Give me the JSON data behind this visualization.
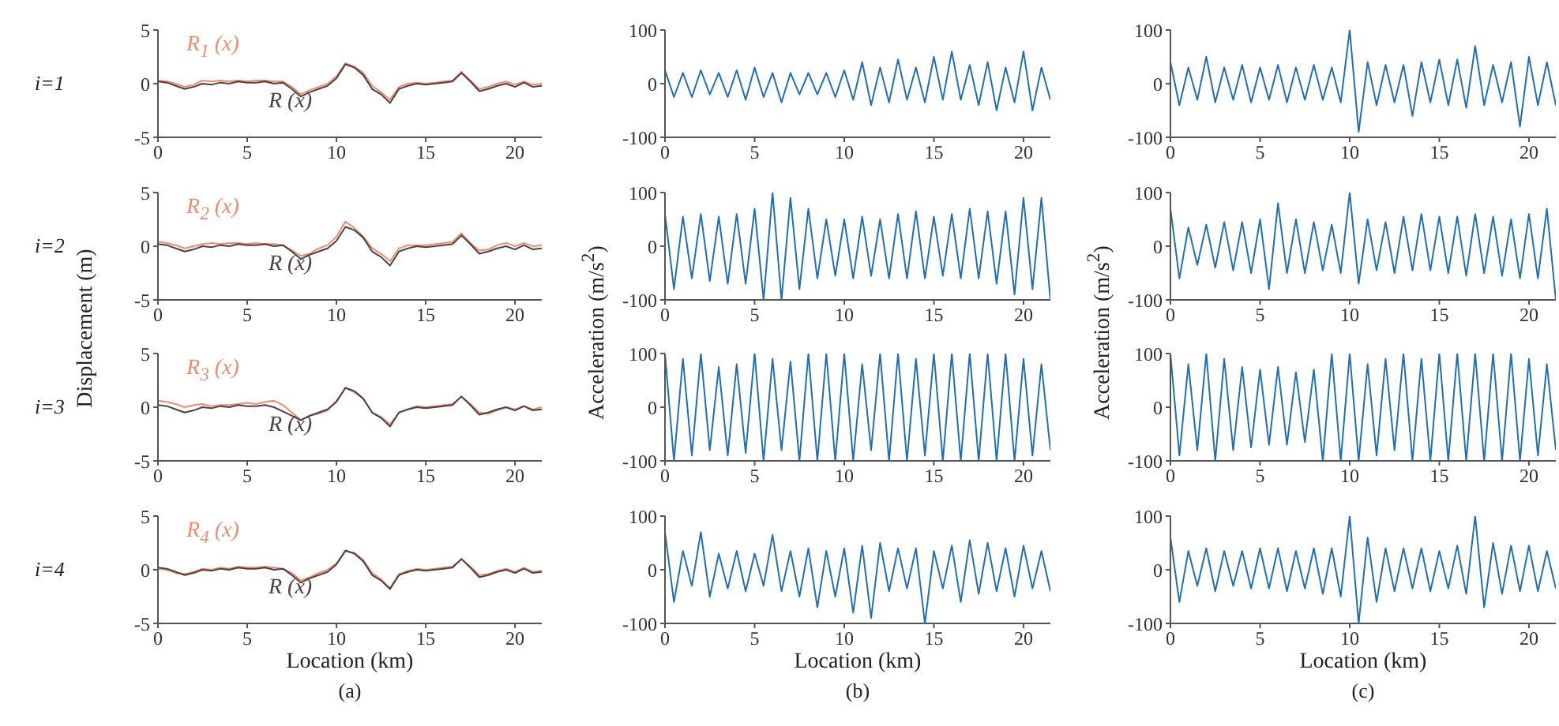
{
  "chart_data": [
    {
      "type": "line",
      "annotations": [
        "i=1"
      ],
      "xlim": [
        0,
        21.5
      ],
      "xticks": [
        0,
        5,
        10,
        15,
        20
      ],
      "ylim": [
        -5,
        5
      ],
      "yticks": [
        -5,
        0,
        5
      ],
      "x": [
        0,
        0.5,
        1,
        1.5,
        2,
        2.5,
        3,
        3.5,
        4,
        4.5,
        5,
        5.5,
        6,
        6.5,
        7,
        7.5,
        8,
        8.5,
        9,
        9.5,
        10,
        10.5,
        11,
        11.5,
        12,
        12.5,
        13,
        13.5,
        14,
        14.5,
        15,
        15.5,
        16,
        16.5,
        17,
        17.5,
        18,
        18.5,
        19,
        19.5,
        20,
        20.5,
        21,
        21.5
      ],
      "series": [
        {
          "name": "R$_{1}$ (x)",
          "color": "#ef8c6c",
          "values": [
            0.3,
            0.2,
            0,
            -0.3,
            -0.1,
            0.3,
            0.2,
            0.3,
            0.2,
            0.3,
            0.2,
            0.3,
            0.3,
            0.2,
            0.2,
            -0.3,
            -1.0,
            -0.6,
            -0.3,
            0,
            0.7,
            1.9,
            1.6,
            1.0,
            -0.2,
            -0.8,
            -1.5,
            -0.3,
            0,
            0.1,
            0,
            0.1,
            0.2,
            0.3,
            1.1,
            0.3,
            -0.5,
            -0.3,
            0,
            0.2,
            -0.1,
            0.2,
            -0.1,
            0
          ]
        },
        {
          "name": "R (x)",
          "color": "#4b4046",
          "values": [
            0.2,
            0.1,
            -0.2,
            -0.5,
            -0.3,
            0,
            -0.1,
            0.1,
            0,
            0.2,
            0.1,
            0.1,
            0.2,
            0,
            0.1,
            -0.5,
            -1.2,
            -0.8,
            -0.5,
            -0.2,
            0.5,
            1.8,
            1.5,
            0.8,
            -0.5,
            -1,
            -1.8,
            -0.5,
            -0.2,
            0,
            -0.1,
            0,
            0.1,
            0.2,
            1.0,
            0.2,
            -0.7,
            -0.5,
            -0.2,
            0,
            -0.3,
            0.1,
            -0.3,
            -0.2
          ]
        }
      ]
    },
    {
      "type": "line",
      "xlim": [
        0,
        21.5
      ],
      "xticks": [
        0,
        5,
        10,
        15,
        20
      ],
      "ylim": [
        -100,
        100
      ],
      "yticks": [
        -100,
        0,
        100
      ],
      "x": [
        0,
        0.5,
        1,
        1.5,
        2,
        2.5,
        3,
        3.5,
        4,
        4.5,
        5,
        5.5,
        6,
        6.5,
        7,
        7.5,
        8,
        8.5,
        9,
        9.5,
        10,
        10.5,
        11,
        11.5,
        12,
        12.5,
        13,
        13.5,
        14,
        14.5,
        15,
        15.5,
        16,
        16.5,
        17,
        17.5,
        18,
        18.5,
        19,
        19.5,
        20,
        20.5,
        21,
        21.5
      ],
      "series": [
        {
          "color": "#1f6fb4",
          "values": [
            25,
            -25,
            20,
            -25,
            25,
            -20,
            20,
            -25,
            25,
            -30,
            30,
            -25,
            20,
            -35,
            20,
            -20,
            20,
            -20,
            20,
            -25,
            25,
            -30,
            40,
            -40,
            30,
            -35,
            45,
            -30,
            30,
            -35,
            50,
            -30,
            60,
            -30,
            35,
            -40,
            40,
            -50,
            30,
            -35,
            60,
            -50,
            30,
            -30
          ]
        }
      ]
    },
    {
      "type": "line",
      "xlim": [
        0,
        21.5
      ],
      "xticks": [
        0,
        5,
        10,
        15,
        20
      ],
      "ylim": [
        -100,
        100
      ],
      "yticks": [
        -100,
        0,
        100
      ],
      "x": [
        0,
        0.5,
        1,
        1.5,
        2,
        2.5,
        3,
        3.5,
        4,
        4.5,
        5,
        5.5,
        6,
        6.5,
        7,
        7.5,
        8,
        8.5,
        9,
        9.5,
        10,
        10.5,
        11,
        11.5,
        12,
        12.5,
        13,
        13.5,
        14,
        14.5,
        15,
        15.5,
        16,
        16.5,
        17,
        17.5,
        18,
        18.5,
        19,
        19.5,
        20,
        20.5,
        21,
        21.5
      ],
      "series": [
        {
          "color": "#1f6fb4",
          "values": [
            40,
            -40,
            30,
            -30,
            50,
            -35,
            30,
            -30,
            35,
            -35,
            30,
            -30,
            35,
            -35,
            30,
            -30,
            35,
            -30,
            30,
            -35,
            100,
            -90,
            40,
            -40,
            35,
            -35,
            35,
            -60,
            40,
            -35,
            45,
            -40,
            45,
            -45,
            70,
            -40,
            35,
            -35,
            40,
            -80,
            50,
            -40,
            40,
            -40
          ]
        }
      ]
    },
    {
      "type": "line",
      "annotations": [
        "i=2"
      ],
      "ylabel": "Displacement (m)",
      "xlim": [
        0,
        21.5
      ],
      "xticks": [
        0,
        5,
        10,
        15,
        20
      ],
      "ylim": [
        -5,
        5
      ],
      "yticks": [
        -5,
        0,
        5
      ],
      "x": [
        0,
        0.5,
        1,
        1.5,
        2,
        2.5,
        3,
        3.5,
        4,
        4.5,
        5,
        5.5,
        6,
        6.5,
        7,
        7.5,
        8,
        8.5,
        9,
        9.5,
        10,
        10.5,
        11,
        11.5,
        12,
        12.5,
        13,
        13.5,
        14,
        14.5,
        15,
        15.5,
        16,
        16.5,
        17,
        17.5,
        18,
        18.5,
        19,
        19.5,
        20,
        20.5,
        21,
        21.5
      ],
      "series": [
        {
          "name": "R$_{2}$ (x)",
          "color": "#ef8c6c",
          "values": [
            0.4,
            0.3,
            0.1,
            -0.2,
            0,
            0.2,
            0.3,
            0.2,
            0.3,
            0.3,
            0.2,
            0.3,
            0.2,
            0.2,
            0.1,
            -0.4,
            -0.9,
            -0.7,
            -0.2,
            0.1,
            0.9,
            2.3,
            1.7,
            0.9,
            -0.2,
            -0.7,
            -1.4,
            -0.2,
            0.1,
            0.1,
            0.1,
            0.2,
            0.3,
            0.4,
            1.2,
            0.3,
            -0.4,
            -0.3,
            0.1,
            0.3,
            0,
            0.3,
            0,
            0.1
          ]
        },
        {
          "name": "R (x)",
          "color": "#4b4046",
          "values": [
            0.2,
            0.1,
            -0.2,
            -0.5,
            -0.3,
            0,
            -0.1,
            0.1,
            0,
            0.2,
            0.1,
            0.1,
            0.2,
            0,
            0.1,
            -0.5,
            -1.2,
            -0.8,
            -0.5,
            -0.2,
            0.5,
            1.8,
            1.5,
            0.8,
            -0.5,
            -1,
            -1.8,
            -0.5,
            -0.2,
            0,
            -0.1,
            0,
            0.1,
            0.2,
            1.0,
            0.2,
            -0.7,
            -0.5,
            -0.2,
            0,
            -0.3,
            0.1,
            -0.3,
            -0.2
          ]
        }
      ]
    },
    {
      "type": "line",
      "ylabel": "Acceleration (m/s$^{2}$)",
      "xlim": [
        0,
        21.5
      ],
      "xticks": [
        0,
        5,
        10,
        15,
        20
      ],
      "ylim": [
        -100,
        100
      ],
      "yticks": [
        -100,
        0,
        100
      ],
      "x": [
        0,
        0.5,
        1,
        1.5,
        2,
        2.5,
        3,
        3.5,
        4,
        4.5,
        5,
        5.5,
        6,
        6.5,
        7,
        7.5,
        8,
        8.5,
        9,
        9.5,
        10,
        10.5,
        11,
        11.5,
        12,
        12.5,
        13,
        13.5,
        14,
        14.5,
        15,
        15.5,
        16,
        16.5,
        17,
        17.5,
        18,
        18.5,
        19,
        19.5,
        20,
        20.5,
        21,
        21.5
      ],
      "series": [
        {
          "color": "#1f6fb4",
          "values": [
            60,
            -80,
            55,
            -60,
            60,
            -65,
            55,
            -70,
            60,
            -70,
            70,
            -100,
            100,
            -100,
            90,
            -80,
            70,
            -60,
            50,
            -55,
            50,
            -60,
            55,
            -55,
            50,
            -60,
            60,
            -60,
            65,
            -60,
            55,
            -55,
            60,
            -60,
            70,
            -60,
            65,
            -70,
            65,
            -90,
            90,
            -80,
            90,
            -100
          ]
        }
      ]
    },
    {
      "type": "line",
      "ylabel": "Acceleration (m/s$^{2}$)",
      "xlim": [
        0,
        21.5
      ],
      "xticks": [
        0,
        5,
        10,
        15,
        20
      ],
      "ylim": [
        -100,
        100
      ],
      "yticks": [
        -100,
        0,
        100
      ],
      "x": [
        0,
        0.5,
        1,
        1.5,
        2,
        2.5,
        3,
        3.5,
        4,
        4.5,
        5,
        5.5,
        6,
        6.5,
        7,
        7.5,
        8,
        8.5,
        9,
        9.5,
        10,
        10.5,
        11,
        11.5,
        12,
        12.5,
        13,
        13.5,
        14,
        14.5,
        15,
        15.5,
        16,
        16.5,
        17,
        17.5,
        18,
        18.5,
        19,
        19.5,
        20,
        20.5,
        21,
        21.5
      ],
      "series": [
        {
          "color": "#1f6fb4",
          "values": [
            70,
            -60,
            35,
            -35,
            40,
            -40,
            45,
            -45,
            45,
            -50,
            50,
            -80,
            80,
            -50,
            50,
            -50,
            45,
            -45,
            40,
            -50,
            100,
            -70,
            50,
            -45,
            45,
            -50,
            55,
            -45,
            60,
            -45,
            55,
            -50,
            55,
            -55,
            60,
            -50,
            55,
            -55,
            50,
            -60,
            60,
            -60,
            70,
            -100
          ]
        }
      ]
    },
    {
      "type": "line",
      "annotations": [
        "i=3"
      ],
      "xlim": [
        0,
        21.5
      ],
      "xticks": [
        0,
        5,
        10,
        15,
        20
      ],
      "ylim": [
        -5,
        5
      ],
      "yticks": [
        -5,
        0,
        5
      ],
      "x": [
        0,
        0.5,
        1,
        1.5,
        2,
        2.5,
        3,
        3.5,
        4,
        4.5,
        5,
        5.5,
        6,
        6.5,
        7,
        7.5,
        8,
        8.5,
        9,
        9.5,
        10,
        10.5,
        11,
        11.5,
        12,
        12.5,
        13,
        13.5,
        14,
        14.5,
        15,
        15.5,
        16,
        16.5,
        17,
        17.5,
        18,
        18.5,
        19,
        19.5,
        20,
        20.5,
        21,
        21.5
      ],
      "series": [
        {
          "name": "R$_{3}$ (x)",
          "color": "#ef8c6c",
          "values": [
            0.6,
            0.5,
            0.3,
            0,
            0.2,
            0.3,
            0.1,
            0.2,
            0.2,
            0.3,
            0.4,
            0.3,
            0.5,
            0.6,
            0.2,
            -0.5,
            -1.2,
            -0.8,
            -0.6,
            -0.3,
            0.6,
            1.8,
            1.4,
            0.8,
            -0.5,
            -0.9,
            -1.6,
            -0.5,
            -0.2,
            0.1,
            0,
            0.1,
            0.2,
            0.3,
            1.0,
            0.3,
            -0.5,
            -0.6,
            -0.3,
            0,
            -0.2,
            0.1,
            -0.2,
            0
          ]
        },
        {
          "name": "R (x)",
          "color": "#4b4046",
          "values": [
            0.2,
            0.1,
            -0.2,
            -0.5,
            -0.3,
            0,
            -0.1,
            0.1,
            0,
            0.2,
            0.1,
            0.1,
            0.2,
            0,
            -0.4,
            -0.8,
            -1.2,
            -0.8,
            -0.5,
            -0.2,
            0.5,
            1.8,
            1.5,
            0.8,
            -0.5,
            -1,
            -1.8,
            -0.5,
            -0.2,
            0,
            -0.1,
            0,
            0.1,
            0.2,
            1.0,
            0.2,
            -0.7,
            -0.5,
            -0.2,
            0,
            -0.3,
            0.1,
            -0.3,
            -0.2
          ]
        }
      ]
    },
    {
      "type": "line",
      "xlim": [
        0,
        21.5
      ],
      "xticks": [
        0,
        5,
        10,
        15,
        20
      ],
      "ylim": [
        -100,
        100
      ],
      "yticks": [
        -100,
        0,
        100
      ],
      "x": [
        0,
        0.5,
        1,
        1.5,
        2,
        2.5,
        3,
        3.5,
        4,
        4.5,
        5,
        5.5,
        6,
        6.5,
        7,
        7.5,
        8,
        8.5,
        9,
        9.5,
        10,
        10.5,
        11,
        11.5,
        12,
        12.5,
        13,
        13.5,
        14,
        14.5,
        15,
        15.5,
        16,
        16.5,
        17,
        17.5,
        18,
        18.5,
        19,
        19.5,
        20,
        20.5,
        21,
        21.5
      ],
      "series": [
        {
          "color": "#1f6fb4",
          "values": [
            100,
            -100,
            90,
            -90,
            100,
            -80,
            75,
            -90,
            80,
            -85,
            100,
            -100,
            90,
            -80,
            85,
            -100,
            100,
            -100,
            100,
            -100,
            100,
            -100,
            80,
            -80,
            100,
            -100,
            100,
            -100,
            90,
            -90,
            100,
            -100,
            100,
            -100,
            100,
            -100,
            100,
            -100,
            100,
            -100,
            90,
            -90,
            80,
            -80
          ]
        }
      ]
    },
    {
      "type": "line",
      "xlim": [
        0,
        21.5
      ],
      "xticks": [
        0,
        5,
        10,
        15,
        20
      ],
      "ylim": [
        -100,
        100
      ],
      "yticks": [
        -100,
        0,
        100
      ],
      "x": [
        0,
        0.5,
        1,
        1.5,
        2,
        2.5,
        3,
        3.5,
        4,
        4.5,
        5,
        5.5,
        6,
        6.5,
        7,
        7.5,
        8,
        8.5,
        9,
        9.5,
        10,
        10.5,
        11,
        11.5,
        12,
        12.5,
        13,
        13.5,
        14,
        14.5,
        15,
        15.5,
        16,
        16.5,
        17,
        17.5,
        18,
        18.5,
        19,
        19.5,
        20,
        20.5,
        21,
        21.5
      ],
      "series": [
        {
          "color": "#1f6fb4",
          "values": [
            100,
            -90,
            80,
            -80,
            100,
            -100,
            90,
            -80,
            75,
            -75,
            70,
            -70,
            75,
            -70,
            65,
            -65,
            70,
            -100,
            100,
            -100,
            100,
            -100,
            80,
            -90,
            90,
            -80,
            100,
            -100,
            90,
            -100,
            100,
            -100,
            100,
            -100,
            100,
            -100,
            100,
            -100,
            100,
            -100,
            90,
            -90,
            80,
            -80
          ]
        }
      ]
    },
    {
      "type": "line",
      "annotations": [
        "i=4",
        "(a)"
      ],
      "xlabel": "Location (km)",
      "xlim": [
        0,
        21.5
      ],
      "xticks": [
        0,
        5,
        10,
        15,
        20
      ],
      "ylim": [
        -5,
        5
      ],
      "yticks": [
        -5,
        0,
        5
      ],
      "x": [
        0,
        0.5,
        1,
        1.5,
        2,
        2.5,
        3,
        3.5,
        4,
        4.5,
        5,
        5.5,
        6,
        6.5,
        7,
        7.5,
        8,
        8.5,
        9,
        9.5,
        10,
        10.5,
        11,
        11.5,
        12,
        12.5,
        13,
        13.5,
        14,
        14.5,
        15,
        15.5,
        16,
        16.5,
        17,
        17.5,
        18,
        18.5,
        19,
        19.5,
        20,
        20.5,
        21,
        21.5
      ],
      "series": [
        {
          "name": "R$_{4}$ (x)",
          "color": "#ef8c6c",
          "values": [
            0.1,
            0,
            -0.3,
            -0.4,
            -0.2,
            0.1,
            0,
            0.2,
            0.1,
            0.3,
            0.2,
            0.2,
            0.3,
            0.2,
            0.1,
            -0.3,
            -1.0,
            -0.7,
            -0.3,
            0,
            0.6,
            1.7,
            1.6,
            0.9,
            -0.3,
            -0.9,
            -1.7,
            -0.4,
            -0.1,
            0.1,
            0,
            0.1,
            0.2,
            0.3,
            1.0,
            0.3,
            -0.5,
            -0.4,
            -0.1,
            0.1,
            -0.2,
            0.2,
            -0.2,
            -0.1
          ]
        },
        {
          "name": "R (x)",
          "color": "#4b4046",
          "values": [
            0.2,
            0.1,
            -0.2,
            -0.5,
            -0.3,
            0,
            -0.1,
            0.1,
            0,
            0.2,
            0.1,
            0.1,
            0.2,
            0,
            0.1,
            -0.5,
            -1.2,
            -0.8,
            -0.5,
            -0.2,
            0.5,
            1.8,
            1.5,
            0.8,
            -0.5,
            -1,
            -1.8,
            -0.5,
            -0.2,
            0,
            -0.1,
            0,
            0.1,
            0.2,
            1.0,
            0.2,
            -0.7,
            -0.5,
            -0.2,
            0,
            -0.3,
            0.1,
            -0.3,
            -0.2
          ]
        }
      ]
    },
    {
      "type": "line",
      "annotations": [
        "(b)"
      ],
      "xlabel": "Location (km)",
      "xlim": [
        0,
        21.5
      ],
      "xticks": [
        0,
        5,
        10,
        15,
        20
      ],
      "ylim": [
        -100,
        100
      ],
      "yticks": [
        -100,
        0,
        100
      ],
      "x": [
        0,
        0.5,
        1,
        1.5,
        2,
        2.5,
        3,
        3.5,
        4,
        4.5,
        5,
        5.5,
        6,
        6.5,
        7,
        7.5,
        8,
        8.5,
        9,
        9.5,
        10,
        10.5,
        11,
        11.5,
        12,
        12.5,
        13,
        13.5,
        14,
        14.5,
        15,
        15.5,
        16,
        16.5,
        17,
        17.5,
        18,
        18.5,
        19,
        19.5,
        20,
        20.5,
        21,
        21.5
      ],
      "series": [
        {
          "color": "#1f6fb4",
          "values": [
            70,
            -60,
            35,
            -30,
            70,
            -50,
            30,
            -35,
            35,
            -40,
            30,
            -30,
            65,
            -40,
            35,
            -50,
            40,
            -70,
            35,
            -50,
            40,
            -80,
            45,
            -90,
            50,
            -40,
            40,
            -35,
            40,
            -100,
            35,
            -35,
            45,
            -60,
            55,
            -45,
            50,
            -40,
            40,
            -50,
            45,
            -35,
            35,
            -40
          ]
        }
      ]
    },
    {
      "type": "line",
      "annotations": [
        "(c)"
      ],
      "xlabel": "Location (km)",
      "xlim": [
        0,
        21.5
      ],
      "xticks": [
        0,
        5,
        10,
        15,
        20
      ],
      "ylim": [
        -100,
        100
      ],
      "yticks": [
        -100,
        0,
        100
      ],
      "x": [
        0,
        0.5,
        1,
        1.5,
        2,
        2.5,
        3,
        3.5,
        4,
        4.5,
        5,
        5.5,
        6,
        6.5,
        7,
        7.5,
        8,
        8.5,
        9,
        9.5,
        10,
        10.5,
        11,
        11.5,
        12,
        12.5,
        13,
        13.5,
        14,
        14.5,
        15,
        15.5,
        16,
        16.5,
        17,
        17.5,
        18,
        18.5,
        19,
        19.5,
        20,
        20.5,
        21,
        21.5
      ],
      "series": [
        {
          "color": "#1f6fb4",
          "values": [
            60,
            -60,
            35,
            -30,
            40,
            -40,
            35,
            -30,
            35,
            -35,
            40,
            -35,
            40,
            -40,
            35,
            -35,
            40,
            -45,
            40,
            -50,
            100,
            -100,
            60,
            -60,
            40,
            -40,
            40,
            -35,
            40,
            -40,
            35,
            -35,
            45,
            -45,
            100,
            -70,
            50,
            -45,
            45,
            -40,
            45,
            -40,
            35,
            -35
          ]
        }
      ]
    }
  ]
}
